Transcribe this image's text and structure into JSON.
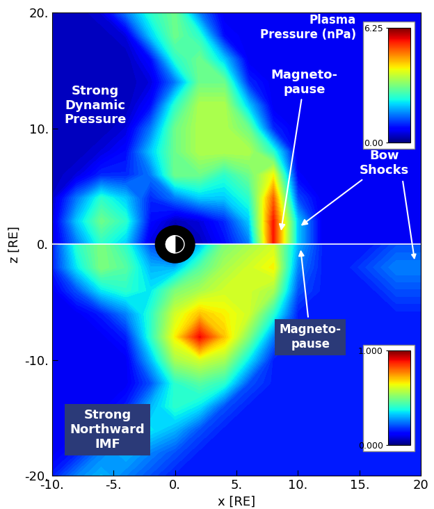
{
  "chart_data": {
    "type": "contour",
    "xlabel": "x [RE]",
    "ylabel": "z [RE]",
    "xlim": [
      -10,
      20
    ],
    "ylim": [
      -20,
      20
    ],
    "xticks": [
      {
        "value": -10,
        "label": "-10."
      },
      {
        "value": -5,
        "label": "-5."
      },
      {
        "value": 0,
        "label": "0."
      },
      {
        "value": 5,
        "label": "5."
      },
      {
        "value": 10,
        "label": "10."
      },
      {
        "value": 15,
        "label": "15."
      },
      {
        "value": 20,
        "label": "20"
      }
    ],
    "yticks": [
      {
        "value": -20,
        "label": "-20."
      },
      {
        "value": -10,
        "label": "-10."
      },
      {
        "value": 0,
        "label": "0."
      },
      {
        "value": 10,
        "label": "10."
      },
      {
        "value": 20,
        "label": "20."
      }
    ],
    "x": [
      -10,
      -8,
      -6,
      -4,
      -2,
      0,
      2,
      4,
      6,
      8,
      10,
      12,
      14,
      16,
      18,
      20
    ],
    "panels": [
      {
        "name": "Plasma\nPressure (nPa)",
        "z": [
          0,
          2,
          4,
          6,
          8,
          10,
          12,
          14,
          16,
          18,
          20
        ],
        "values": [
          [
            0.5,
            1.5,
            2.5,
            2.0,
            0.5,
            0.0,
            0.3,
            0.8,
            1.5,
            5.5,
            2.0,
            0.6,
            0.6,
            0.6,
            0.6,
            0.6
          ],
          [
            0.5,
            2.0,
            3.0,
            2.5,
            0.8,
            0.3,
            0.5,
            1.0,
            2.0,
            5.5,
            2.0,
            0.6,
            0.6,
            0.6,
            0.6,
            0.6
          ],
          [
            0.4,
            1.5,
            2.5,
            2.0,
            1.0,
            1.5,
            2.0,
            2.0,
            2.5,
            5.0,
            1.2,
            0.6,
            0.6,
            0.6,
            0.6,
            0.6
          ],
          [
            0.3,
            0.5,
            1.0,
            1.0,
            1.5,
            3.0,
            3.0,
            2.5,
            3.0,
            4.0,
            0.7,
            0.6,
            0.6,
            0.6,
            0.6,
            0.6
          ],
          [
            0.3,
            0.3,
            0.5,
            0.8,
            2.0,
            3.0,
            3.5,
            3.5,
            3.5,
            2.5,
            0.6,
            0.6,
            0.6,
            0.6,
            0.6,
            0.6
          ],
          [
            0.3,
            0.3,
            0.3,
            0.5,
            1.5,
            3.0,
            3.5,
            3.5,
            3.0,
            1.0,
            0.6,
            0.6,
            0.6,
            0.6,
            0.6,
            0.6
          ],
          [
            0.3,
            0.3,
            0.3,
            0.3,
            0.8,
            2.5,
            3.5,
            3.5,
            2.0,
            0.6,
            0.6,
            0.6,
            0.6,
            0.6,
            0.6,
            0.6
          ],
          [
            0.3,
            0.3,
            0.3,
            0.3,
            0.5,
            1.5,
            3.0,
            3.0,
            1.0,
            0.6,
            0.6,
            0.6,
            0.6,
            0.6,
            0.6,
            0.6
          ],
          [
            0.3,
            0.3,
            0.3,
            0.3,
            0.8,
            2.5,
            3.0,
            2.0,
            0.6,
            0.6,
            0.6,
            0.6,
            0.6,
            0.6,
            0.6,
            0.6
          ],
          [
            0.3,
            0.3,
            0.3,
            0.5,
            2.0,
            3.0,
            2.5,
            0.8,
            0.6,
            0.6,
            0.6,
            0.6,
            0.6,
            0.6,
            0.6,
            0.6
          ],
          [
            0.3,
            0.3,
            0.5,
            1.5,
            2.5,
            3.0,
            1.5,
            0.6,
            0.6,
            0.6,
            0.6,
            0.6,
            0.6,
            0.6,
            0.6,
            0.6
          ]
        ],
        "colorbar": {
          "range": [
            0,
            6.25
          ],
          "ticks": [
            {
              "value": 0,
              "label": "0.00"
            },
            6.25
          ]
        }
      },
      {
        "z": [
          0,
          -2,
          -4,
          -6,
          -8,
          -10,
          -12,
          -14,
          -16,
          -18,
          -20
        ],
        "values": [
          [
            0.15,
            0.4,
            0.5,
            0.4,
            0.2,
            0.0,
            0.3,
            0.5,
            0.55,
            0.6,
            0.3,
            0.15,
            0.15,
            0.15,
            0.2,
            0.2
          ],
          [
            0.15,
            0.35,
            0.5,
            0.45,
            0.3,
            0.3,
            0.45,
            0.55,
            0.6,
            0.65,
            0.25,
            0.15,
            0.15,
            0.2,
            0.25,
            0.25
          ],
          [
            0.1,
            0.2,
            0.35,
            0.4,
            0.35,
            0.5,
            0.55,
            0.6,
            0.6,
            0.55,
            0.2,
            0.15,
            0.15,
            0.15,
            0.2,
            0.2
          ],
          [
            0.1,
            0.1,
            0.15,
            0.25,
            0.4,
            0.6,
            0.7,
            0.65,
            0.6,
            0.4,
            0.15,
            0.15,
            0.15,
            0.15,
            0.15,
            0.15
          ],
          [
            0.1,
            0.1,
            0.1,
            0.15,
            0.4,
            0.65,
            0.9,
            0.7,
            0.5,
            0.25,
            0.15,
            0.15,
            0.15,
            0.15,
            0.15,
            0.15
          ],
          [
            0.1,
            0.1,
            0.1,
            0.1,
            0.3,
            0.55,
            0.6,
            0.55,
            0.35,
            0.15,
            0.15,
            0.15,
            0.15,
            0.15,
            0.15,
            0.15
          ],
          [
            0.1,
            0.1,
            0.1,
            0.1,
            0.2,
            0.4,
            0.45,
            0.4,
            0.2,
            0.15,
            0.15,
            0.15,
            0.15,
            0.15,
            0.15,
            0.15
          ],
          [
            0.1,
            0.1,
            0.1,
            0.15,
            0.3,
            0.4,
            0.35,
            0.2,
            0.15,
            0.15,
            0.15,
            0.15,
            0.15,
            0.15,
            0.15,
            0.15
          ],
          [
            0.1,
            0.1,
            0.15,
            0.25,
            0.35,
            0.3,
            0.2,
            0.15,
            0.15,
            0.15,
            0.15,
            0.15,
            0.15,
            0.15,
            0.15,
            0.15
          ],
          [
            0.1,
            0.15,
            0.25,
            0.3,
            0.25,
            0.2,
            0.15,
            0.15,
            0.15,
            0.15,
            0.15,
            0.15,
            0.15,
            0.15,
            0.15,
            0.15
          ],
          [
            0.15,
            0.25,
            0.3,
            0.25,
            0.2,
            0.15,
            0.15,
            0.15,
            0.15,
            0.15,
            0.15,
            0.15,
            0.15,
            0.15,
            0.15,
            0.15
          ]
        ],
        "colorbar": {
          "range": [
            0,
            1
          ],
          "ticks": [
            {
              "value": 0,
              "label": "0.000"
            },
            {
              "value": 1,
              "label": "1.000"
            }
          ]
        }
      }
    ],
    "annotations": [
      "Strong\nDynamic\nPressure",
      "Magneto-\npause",
      "Bow\nShocks",
      "Magneto-\npause",
      "Strong\nNorthward\nIMF"
    ]
  }
}
